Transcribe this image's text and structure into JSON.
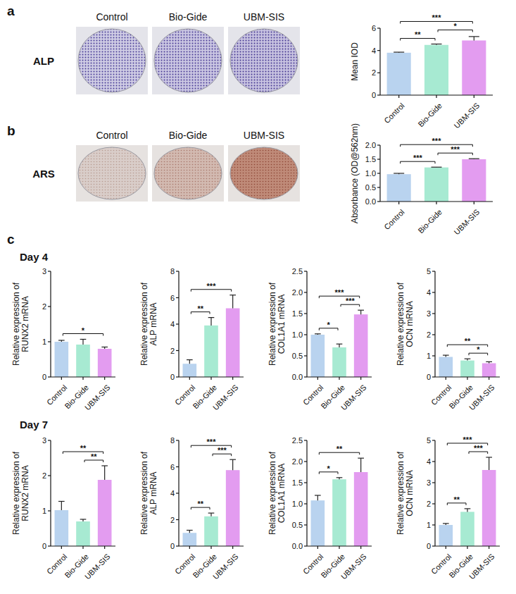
{
  "figure": {
    "panel_labels": [
      "a",
      "b",
      "c"
    ],
    "image_rows": [
      {
        "label": "ALP",
        "titles": [
          "Control",
          "Bio-Gide",
          "UBM-SIS"
        ]
      },
      {
        "label": "ARS",
        "titles": [
          "Control",
          "Bio-Gide",
          "UBM-SIS"
        ]
      }
    ],
    "day_labels": [
      "Day 4",
      "Day 7"
    ]
  },
  "chart_data": [
    {
      "type": "bar",
      "y_label": "Mean IOD",
      "categories": [
        "Control",
        "Bio-Gide",
        "UBM-SIS"
      ],
      "values": [
        3.8,
        4.5,
        4.9
      ],
      "errors": [
        0.05,
        0.08,
        0.35
      ],
      "colors": [
        "#b9d3ef",
        "#a7ead2",
        "#e39cf0"
      ],
      "ylim": [
        0,
        6
      ],
      "yticks": [
        0,
        2,
        4,
        6
      ],
      "annotations": [
        {
          "from": "Control",
          "to": "Bio-Gide",
          "label": "**"
        },
        {
          "from": "Bio-Gide",
          "to": "UBM-SIS",
          "label": "*"
        },
        {
          "from": "Control",
          "to": "UBM-SIS",
          "label": "***"
        }
      ]
    },
    {
      "type": "bar",
      "y_label": "Absorbance (OD@562nm)",
      "categories": [
        "Control",
        "Bio-Gide",
        "UBM-SIS"
      ],
      "values": [
        0.97,
        1.21,
        1.5
      ],
      "errors": [
        0.03,
        0.01,
        0.02
      ],
      "colors": [
        "#b9d3ef",
        "#a7ead2",
        "#e39cf0"
      ],
      "ylim": [
        0,
        2
      ],
      "yticks": [
        {
          "value": 0,
          "label": "0.0"
        },
        {
          "value": 0.5,
          "label": "0.5"
        },
        {
          "value": 1,
          "label": "1.0"
        },
        {
          "value": 1.5,
          "label": "1.5"
        },
        {
          "value": 2,
          "label": "2.0"
        }
      ],
      "annotations": [
        {
          "from": "Control",
          "to": "Bio-Gide",
          "label": "***"
        },
        {
          "from": "Bio-Gide",
          "to": "UBM-SIS",
          "label": "***"
        },
        {
          "from": "Control",
          "to": "UBM-SIS",
          "label": "***"
        }
      ]
    },
    {
      "type": "bar",
      "y_label": "Relative expression of RUNX2 mRNA",
      "categories": [
        "Control",
        "Bio-Gide",
        "UBM-SIS"
      ],
      "values": [
        1.0,
        0.92,
        0.8
      ],
      "errors": [
        0.04,
        0.15,
        0.05
      ],
      "colors": [
        "#b9d3ef",
        "#a7ead2",
        "#e39cf0"
      ],
      "ylim": [
        0,
        3
      ],
      "yticks": [
        0,
        1,
        2,
        3
      ],
      "annotations": [
        {
          "from": "Control",
          "to": "UBM-SIS",
          "label": "*"
        }
      ]
    },
    {
      "type": "bar",
      "y_label": "Relative expression of ALP mRNA",
      "categories": [
        "Control",
        "Bio-Gide",
        "UBM-SIS"
      ],
      "values": [
        1.0,
        3.9,
        5.2
      ],
      "errors": [
        0.3,
        0.6,
        1.0
      ],
      "colors": [
        "#b9d3ef",
        "#a7ead2",
        "#e39cf0"
      ],
      "ylim": [
        0,
        8
      ],
      "yticks": [
        0,
        2,
        4,
        6,
        8
      ],
      "annotations": [
        {
          "from": "Control",
          "to": "Bio-Gide",
          "label": "**"
        },
        {
          "from": "Control",
          "to": "UBM-SIS",
          "label": "***"
        }
      ]
    },
    {
      "type": "bar",
      "y_label": "Relative expression of COL1A1 mRNA",
      "categories": [
        "Control",
        "Bio-Gide",
        "UBM-SIS"
      ],
      "values": [
        1.0,
        0.7,
        1.48
      ],
      "errors": [
        0.02,
        0.08,
        0.1
      ],
      "colors": [
        "#b9d3ef",
        "#a7ead2",
        "#e39cf0"
      ],
      "ylim": [
        0,
        2.5
      ],
      "yticks": [
        {
          "value": 0,
          "label": "0.0"
        },
        {
          "value": 0.5,
          "label": "0.5"
        },
        {
          "value": 1,
          "label": "1.0"
        },
        {
          "value": 1.5,
          "label": "1.5"
        },
        {
          "value": 2,
          "label": "2.0"
        },
        {
          "value": 2.5,
          "label": "2.5"
        }
      ],
      "annotations": [
        {
          "from": "Control",
          "to": "Bio-Gide",
          "label": "*"
        },
        {
          "from": "Bio-Gide",
          "to": "UBM-SIS",
          "label": "***"
        },
        {
          "from": "Control",
          "to": "UBM-SIS",
          "label": "***"
        }
      ]
    },
    {
      "type": "bar",
      "y_label": "Relative expression of OCN mRNA",
      "categories": [
        "Control",
        "Bio-Gide",
        "UBM-SIS"
      ],
      "values": [
        0.95,
        0.78,
        0.65
      ],
      "errors": [
        0.08,
        0.08,
        0.07
      ],
      "colors": [
        "#b9d3ef",
        "#a7ead2",
        "#e39cf0"
      ],
      "ylim": [
        0,
        5
      ],
      "yticks": [
        0,
        1,
        2,
        3,
        4,
        5
      ],
      "annotations": [
        {
          "from": "Bio-Gide",
          "to": "UBM-SIS",
          "label": "*"
        },
        {
          "from": "Control",
          "to": "UBM-SIS",
          "label": "**"
        }
      ]
    },
    {
      "type": "bar",
      "y_label": "Relative expression of RUNX2 mRNA",
      "categories": [
        "Control",
        "Bio-Gide",
        "UBM-SIS"
      ],
      "values": [
        1.02,
        0.7,
        1.88
      ],
      "errors": [
        0.25,
        0.06,
        0.4
      ],
      "colors": [
        "#b9d3ef",
        "#a7ead2",
        "#e39cf0"
      ],
      "ylim": [
        0,
        3
      ],
      "yticks": [
        0,
        1,
        2,
        3
      ],
      "annotations": [
        {
          "from": "Bio-Gide",
          "to": "UBM-SIS",
          "label": "**"
        },
        {
          "from": "Control",
          "to": "UBM-SIS",
          "label": "**"
        }
      ]
    },
    {
      "type": "bar",
      "y_label": "Relative expression of ALP mRNA",
      "categories": [
        "Control",
        "Bio-Gide",
        "UBM-SIS"
      ],
      "values": [
        1.0,
        2.25,
        5.75
      ],
      "errors": [
        0.2,
        0.25,
        0.8
      ],
      "colors": [
        "#b9d3ef",
        "#a7ead2",
        "#e39cf0"
      ],
      "ylim": [
        0,
        8
      ],
      "yticks": [
        0,
        2,
        4,
        6,
        8
      ],
      "annotations": [
        {
          "from": "Control",
          "to": "Bio-Gide",
          "label": "**"
        },
        {
          "from": "Bio-Gide",
          "to": "UBM-SIS",
          "label": "***"
        },
        {
          "from": "Control",
          "to": "UBM-SIS",
          "label": "***"
        }
      ]
    },
    {
      "type": "bar",
      "y_label": "Relative expression of COL1A1 mRNA",
      "categories": [
        "Control",
        "Bio-Gide",
        "UBM-SIS"
      ],
      "values": [
        1.08,
        1.58,
        1.75
      ],
      "errors": [
        0.12,
        0.04,
        0.33
      ],
      "colors": [
        "#b9d3ef",
        "#a7ead2",
        "#e39cf0"
      ],
      "ylim": [
        0,
        2.5
      ],
      "yticks": [
        {
          "value": 0,
          "label": "0.0"
        },
        {
          "value": 0.5,
          "label": "0.5"
        },
        {
          "value": 1,
          "label": "1.0"
        },
        {
          "value": 1.5,
          "label": "1.5"
        },
        {
          "value": 2,
          "label": "2.0"
        },
        {
          "value": 2.5,
          "label": "2.5"
        }
      ],
      "annotations": [
        {
          "from": "Control",
          "to": "Bio-Gide",
          "label": "*"
        },
        {
          "from": "Control",
          "to": "UBM-SIS",
          "label": "**"
        }
      ]
    },
    {
      "type": "bar",
      "y_label": "Relative expression of OCN mRNA",
      "categories": [
        "Control",
        "Bio-Gide",
        "UBM-SIS"
      ],
      "values": [
        1.0,
        1.62,
        3.6
      ],
      "errors": [
        0.07,
        0.15,
        0.6
      ],
      "colors": [
        "#b9d3ef",
        "#a7ead2",
        "#e39cf0"
      ],
      "ylim": [
        0,
        5
      ],
      "yticks": [
        0,
        1,
        2,
        3,
        4,
        5
      ],
      "annotations": [
        {
          "from": "Control",
          "to": "Bio-Gide",
          "label": "**"
        },
        {
          "from": "Bio-Gide",
          "to": "UBM-SIS",
          "label": "***"
        },
        {
          "from": "Control",
          "to": "UBM-SIS",
          "label": "***"
        }
      ]
    }
  ]
}
